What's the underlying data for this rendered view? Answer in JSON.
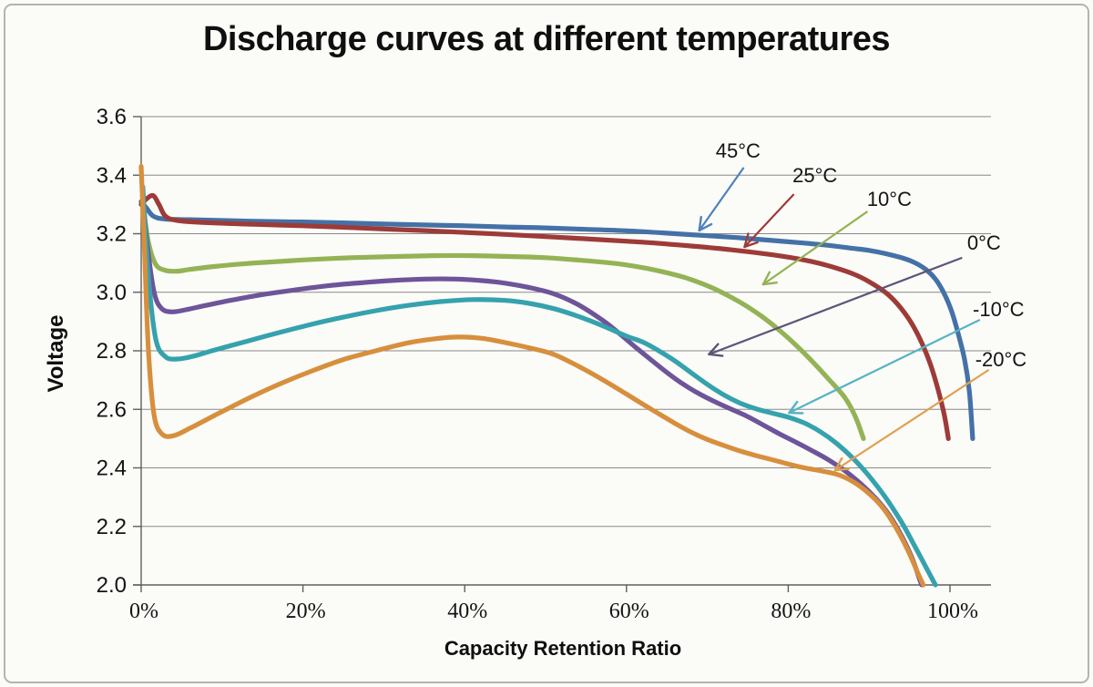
{
  "title": "Discharge curves at different temperatures",
  "chart_data": {
    "type": "line",
    "title": "Discharge curves at different temperatures",
    "xlabel": "Capacity Retention Ratio",
    "ylabel": "Voltage",
    "xlim": [
      0,
      105
    ],
    "ylim": [
      2.0,
      3.6
    ],
    "grid": "horizontal-gray-lines",
    "legend_position": "inline-arrow-annotations",
    "x_ticks": {
      "values": [
        0,
        20,
        40,
        60,
        80,
        100
      ],
      "labels": [
        "0%",
        "20%",
        "40%",
        "60%",
        "80%",
        "100%"
      ]
    },
    "y_ticks": {
      "values": [
        3.6,
        3.4,
        3.2,
        3.0,
        2.8,
        2.6,
        2.4,
        2.2,
        2.0
      ],
      "labels": [
        "3.6",
        "3.4",
        "3.2",
        "3.0",
        "2.8",
        "2.6",
        "2.4",
        "2.2",
        "2.0"
      ]
    },
    "series": [
      {
        "name": "45°C",
        "color": "#4471a7",
        "points": [
          [
            0,
            3.31
          ],
          [
            0.6,
            3.29
          ],
          [
            1.5,
            3.26
          ],
          [
            3,
            3.25
          ],
          [
            6,
            3.248
          ],
          [
            10,
            3.245
          ],
          [
            15,
            3.242
          ],
          [
            20,
            3.24
          ],
          [
            25,
            3.237
          ],
          [
            30,
            3.233
          ],
          [
            35,
            3.23
          ],
          [
            40,
            3.227
          ],
          [
            45,
            3.223
          ],
          [
            50,
            3.22
          ],
          [
            55,
            3.215
          ],
          [
            60,
            3.21
          ],
          [
            65,
            3.202
          ],
          [
            70,
            3.193
          ],
          [
            74,
            3.186
          ],
          [
            78,
            3.177
          ],
          [
            82,
            3.168
          ],
          [
            85,
            3.16
          ],
          [
            88,
            3.15
          ],
          [
            90,
            3.143
          ],
          [
            92,
            3.132
          ],
          [
            94,
            3.118
          ],
          [
            95.5,
            3.103
          ],
          [
            97,
            3.078
          ],
          [
            98.2,
            3.045
          ],
          [
            99.2,
            3.0
          ],
          [
            100.2,
            2.935
          ],
          [
            101,
            2.86
          ],
          [
            101.8,
            2.77
          ],
          [
            102.4,
            2.66
          ],
          [
            102.8,
            2.5
          ]
        ]
      },
      {
        "name": "25°C",
        "color": "#9d3b38",
        "points": [
          [
            0,
            3.3
          ],
          [
            0.7,
            3.32
          ],
          [
            1.5,
            3.33
          ],
          [
            2.2,
            3.3
          ],
          [
            3,
            3.26
          ],
          [
            4.5,
            3.245
          ],
          [
            8,
            3.238
          ],
          [
            14,
            3.232
          ],
          [
            20,
            3.227
          ],
          [
            26,
            3.221
          ],
          [
            32,
            3.214
          ],
          [
            38,
            3.207
          ],
          [
            44,
            3.199
          ],
          [
            50,
            3.19
          ],
          [
            56,
            3.181
          ],
          [
            62,
            3.171
          ],
          [
            68,
            3.158
          ],
          [
            73,
            3.145
          ],
          [
            78,
            3.128
          ],
          [
            82,
            3.11
          ],
          [
            85,
            3.09
          ],
          [
            88,
            3.063
          ],
          [
            90,
            3.036
          ],
          [
            92,
            3.0
          ],
          [
            93.5,
            2.96
          ],
          [
            95,
            2.905
          ],
          [
            96.3,
            2.84
          ],
          [
            97.5,
            2.76
          ],
          [
            98.5,
            2.67
          ],
          [
            99.3,
            2.58
          ],
          [
            99.8,
            2.5
          ]
        ]
      },
      {
        "name": "10°C",
        "color": "#93b355",
        "points": [
          [
            0.2,
            3.3
          ],
          [
            0.9,
            3.17
          ],
          [
            1.8,
            3.095
          ],
          [
            3,
            3.075
          ],
          [
            4.5,
            3.072
          ],
          [
            6,
            3.078
          ],
          [
            9,
            3.088
          ],
          [
            13,
            3.098
          ],
          [
            17,
            3.105
          ],
          [
            21,
            3.112
          ],
          [
            26,
            3.118
          ],
          [
            31,
            3.122
          ],
          [
            36,
            3.125
          ],
          [
            41,
            3.125
          ],
          [
            46,
            3.122
          ],
          [
            50,
            3.118
          ],
          [
            54,
            3.11
          ],
          [
            58,
            3.1
          ],
          [
            61,
            3.089
          ],
          [
            64,
            3.073
          ],
          [
            67,
            3.052
          ],
          [
            69,
            3.033
          ],
          [
            71,
            3.01
          ],
          [
            73,
            2.982
          ],
          [
            75,
            2.95
          ],
          [
            77,
            2.912
          ],
          [
            79,
            2.868
          ],
          [
            81,
            2.818
          ],
          [
            83,
            2.763
          ],
          [
            85,
            2.703
          ],
          [
            87,
            2.64
          ],
          [
            88.3,
            2.575
          ],
          [
            89.3,
            2.5
          ]
        ]
      },
      {
        "name": "0°C",
        "color": "#6e5499",
        "points": [
          [
            0.2,
            3.33
          ],
          [
            0.8,
            3.15
          ],
          [
            1.6,
            3.0
          ],
          [
            2.5,
            2.945
          ],
          [
            3.8,
            2.933
          ],
          [
            5.5,
            2.94
          ],
          [
            8,
            2.955
          ],
          [
            11,
            2.972
          ],
          [
            15,
            2.992
          ],
          [
            19,
            3.008
          ],
          [
            23,
            3.022
          ],
          [
            27,
            3.032
          ],
          [
            31,
            3.04
          ],
          [
            35,
            3.045
          ],
          [
            39,
            3.045
          ],
          [
            42,
            3.04
          ],
          [
            45,
            3.031
          ],
          [
            48,
            3.016
          ],
          [
            51,
            2.995
          ],
          [
            54,
            2.958
          ],
          [
            57,
            2.905
          ],
          [
            59,
            2.862
          ],
          [
            61,
            2.815
          ],
          [
            63,
            2.77
          ],
          [
            65,
            2.726
          ],
          [
            67,
            2.686
          ],
          [
            69,
            2.653
          ],
          [
            71,
            2.625
          ],
          [
            73,
            2.6
          ],
          [
            75,
            2.575
          ],
          [
            77,
            2.545
          ],
          [
            79,
            2.515
          ],
          [
            81,
            2.487
          ],
          [
            83,
            2.458
          ],
          [
            85,
            2.427
          ],
          [
            87,
            2.39
          ],
          [
            89,
            2.345
          ],
          [
            91,
            2.29
          ],
          [
            92.5,
            2.238
          ],
          [
            94,
            2.168
          ],
          [
            95.3,
            2.092
          ],
          [
            96.3,
            2.015
          ],
          [
            96.5,
            2.0
          ]
        ]
      },
      {
        "name": "-10°C",
        "color": "#35a2ad",
        "points": [
          [
            0.2,
            3.36
          ],
          [
            0.9,
            3.05
          ],
          [
            1.8,
            2.84
          ],
          [
            3,
            2.78
          ],
          [
            4.5,
            2.772
          ],
          [
            6.5,
            2.782
          ],
          [
            9,
            2.802
          ],
          [
            13,
            2.832
          ],
          [
            17,
            2.862
          ],
          [
            21,
            2.89
          ],
          [
            25,
            2.915
          ],
          [
            29,
            2.937
          ],
          [
            33,
            2.955
          ],
          [
            37,
            2.968
          ],
          [
            41,
            2.975
          ],
          [
            45,
            2.972
          ],
          [
            48,
            2.962
          ],
          [
            51,
            2.944
          ],
          [
            54,
            2.918
          ],
          [
            57,
            2.886
          ],
          [
            60,
            2.85
          ],
          [
            62,
            2.83
          ],
          [
            64,
            2.8
          ],
          [
            66,
            2.765
          ],
          [
            68,
            2.725
          ],
          [
            70,
            2.685
          ],
          [
            72,
            2.65
          ],
          [
            74,
            2.622
          ],
          [
            76,
            2.602
          ],
          [
            78,
            2.587
          ],
          [
            80,
            2.573
          ],
          [
            82,
            2.553
          ],
          [
            84,
            2.523
          ],
          [
            86,
            2.483
          ],
          [
            88,
            2.433
          ],
          [
            90,
            2.372
          ],
          [
            92,
            2.3
          ],
          [
            94,
            2.215
          ],
          [
            95.5,
            2.14
          ],
          [
            97,
            2.062
          ],
          [
            98.2,
            2.0
          ]
        ]
      },
      {
        "name": "-20°C",
        "color": "#d78f3d",
        "points": [
          [
            0,
            3.43
          ],
          [
            0.4,
            3.15
          ],
          [
            0.9,
            2.8
          ],
          [
            1.6,
            2.58
          ],
          [
            2.6,
            2.515
          ],
          [
            4,
            2.51
          ],
          [
            6,
            2.535
          ],
          [
            9,
            2.578
          ],
          [
            13,
            2.634
          ],
          [
            17,
            2.685
          ],
          [
            21,
            2.73
          ],
          [
            25,
            2.77
          ],
          [
            29,
            2.8
          ],
          [
            33,
            2.827
          ],
          [
            36,
            2.84
          ],
          [
            39,
            2.847
          ],
          [
            42,
            2.843
          ],
          [
            45,
            2.828
          ],
          [
            48,
            2.81
          ],
          [
            51,
            2.788
          ],
          [
            54,
            2.748
          ],
          [
            57,
            2.702
          ],
          [
            60,
            2.652
          ],
          [
            62,
            2.618
          ],
          [
            64,
            2.585
          ],
          [
            66,
            2.552
          ],
          [
            68,
            2.522
          ],
          [
            70,
            2.497
          ],
          [
            72,
            2.477
          ],
          [
            74,
            2.458
          ],
          [
            76,
            2.442
          ],
          [
            78,
            2.428
          ],
          [
            80,
            2.413
          ],
          [
            82,
            2.4
          ],
          [
            84,
            2.39
          ],
          [
            86,
            2.378
          ],
          [
            88,
            2.353
          ],
          [
            90,
            2.312
          ],
          [
            91.8,
            2.26
          ],
          [
            93.4,
            2.192
          ],
          [
            94.8,
            2.118
          ],
          [
            96,
            2.042
          ],
          [
            96.7,
            2.0
          ]
        ]
      }
    ],
    "annotations": [
      {
        "label": "45°C",
        "arrow_color": "#4f81bd",
        "label_at": [
          73.8,
          3.485
        ],
        "arrow": [
          [
            74.5,
            3.426
          ],
          [
            69.0,
            3.211
          ]
        ]
      },
      {
        "label": "25°C",
        "arrow_color": "#9d3b38",
        "label_at": [
          83.3,
          3.401
        ],
        "arrow": [
          [
            80.7,
            3.335
          ],
          [
            74.6,
            3.155
          ]
        ]
      },
      {
        "label": "10°C",
        "arrow_color": "#93b355",
        "label_at": [
          92.5,
          3.32
        ],
        "arrow": [
          [
            89.8,
            3.276
          ],
          [
            76.9,
            3.027
          ]
        ]
      },
      {
        "label": "0°C",
        "arrow_color": "#5d5478",
        "label_at": [
          104.2,
          3.17
        ],
        "arrow": [
          [
            101.5,
            3.118
          ],
          [
            70.2,
            2.788
          ]
        ]
      },
      {
        "label": "-10°C",
        "arrow_color": "#55b3c4",
        "label_at": [
          106.0,
          2.943
        ],
        "arrow": [
          [
            103.7,
            2.906
          ],
          [
            80.1,
            2.588
          ]
        ]
      },
      {
        "label": "-20°C",
        "arrow_color": "#e0a050",
        "label_at": [
          106.3,
          2.772
        ],
        "arrow": [
          [
            104.8,
            2.735
          ],
          [
            85.8,
            2.392
          ]
        ]
      }
    ]
  },
  "style_colors": {
    "gridline": "#8a8a8a",
    "axis": "#5f5f5f",
    "text": "#141414"
  }
}
